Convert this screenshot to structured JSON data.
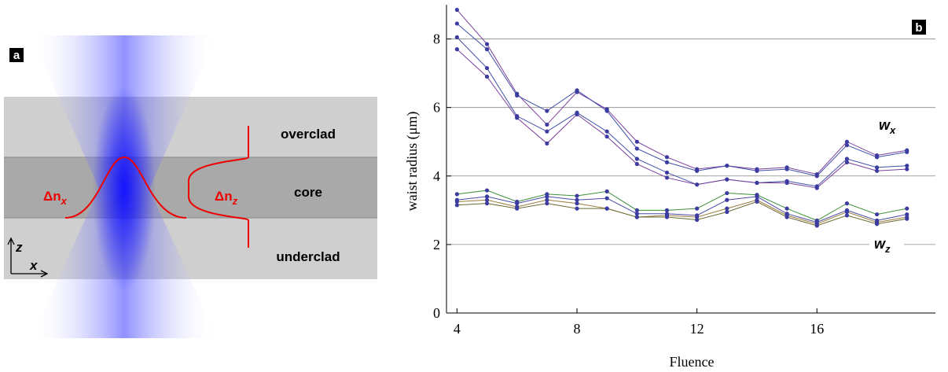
{
  "diagram": {
    "label": "a",
    "layers": [
      "overclad",
      "core",
      "underclad"
    ],
    "profiles": [
      {
        "text": "Δn",
        "sub": "x"
      },
      {
        "text": "Δn",
        "sub": "z"
      }
    ],
    "axes": [
      "z",
      "x"
    ]
  },
  "chart_data": {
    "type": "line",
    "panel_label": "b",
    "xlabel": "Fluence",
    "ylabel": "waist radius (μm)",
    "x": [
      4,
      5,
      6,
      7,
      8,
      9,
      10,
      11,
      12,
      13,
      14,
      15,
      16,
      17,
      18,
      19
    ],
    "xlim": [
      3.65,
      19.95
    ],
    "xticks": [
      4,
      8,
      12,
      16
    ],
    "ylim": [
      0,
      9
    ],
    "yticks": [
      0,
      2,
      4,
      6,
      8
    ],
    "grid": true,
    "series": [
      {
        "color": "#7b3f9e",
        "values": [
          8.85,
          7.85,
          6.4,
          5.5,
          6.45,
          5.95,
          5.0,
          4.55,
          4.2,
          4.3,
          4.2,
          4.25,
          4.05,
          5.0,
          4.6,
          4.75
        ]
      },
      {
        "color": "#3f4fa8",
        "values": [
          8.45,
          7.7,
          6.35,
          5.9,
          6.5,
          5.9,
          4.8,
          4.4,
          4.15,
          4.3,
          4.15,
          4.2,
          4.0,
          4.9,
          4.55,
          4.7
        ]
      },
      {
        "color": "#3f4fa8",
        "values": [
          8.05,
          7.15,
          5.75,
          5.3,
          5.85,
          5.3,
          4.5,
          4.1,
          3.75,
          3.9,
          3.8,
          3.85,
          3.7,
          4.5,
          4.25,
          4.3
        ]
      },
      {
        "color": "#7b3f9e",
        "values": [
          7.7,
          6.9,
          5.7,
          4.95,
          5.8,
          5.15,
          4.35,
          3.95,
          3.75,
          3.9,
          3.8,
          3.8,
          3.65,
          4.4,
          4.15,
          4.2
        ]
      },
      {
        "color": "#3a8f3a",
        "values": [
          3.47,
          3.58,
          3.25,
          3.47,
          3.42,
          3.55,
          3.0,
          3.0,
          3.05,
          3.5,
          3.45,
          3.05,
          2.7,
          3.2,
          2.88,
          3.05
        ]
      },
      {
        "color": "#4a4aa8",
        "values": [
          3.3,
          3.4,
          3.2,
          3.4,
          3.3,
          3.35,
          2.9,
          2.9,
          2.85,
          3.3,
          3.4,
          2.9,
          2.65,
          3.0,
          2.7,
          2.88
        ]
      },
      {
        "color": "#9a7a3a",
        "values": [
          3.25,
          3.3,
          3.1,
          3.3,
          3.2,
          3.05,
          2.8,
          2.85,
          2.8,
          3.05,
          3.3,
          2.85,
          2.6,
          2.95,
          2.65,
          2.8
        ]
      },
      {
        "color": "#6a6a30",
        "values": [
          3.15,
          3.2,
          3.05,
          3.2,
          3.05,
          3.05,
          2.8,
          2.8,
          2.72,
          2.95,
          3.25,
          2.8,
          2.55,
          2.85,
          2.6,
          2.75
        ]
      }
    ],
    "point_color": "#3c3ca0",
    "annotations": [
      {
        "text": "w",
        "sub": "x"
      },
      {
        "text": "w",
        "sub": "z"
      }
    ]
  }
}
